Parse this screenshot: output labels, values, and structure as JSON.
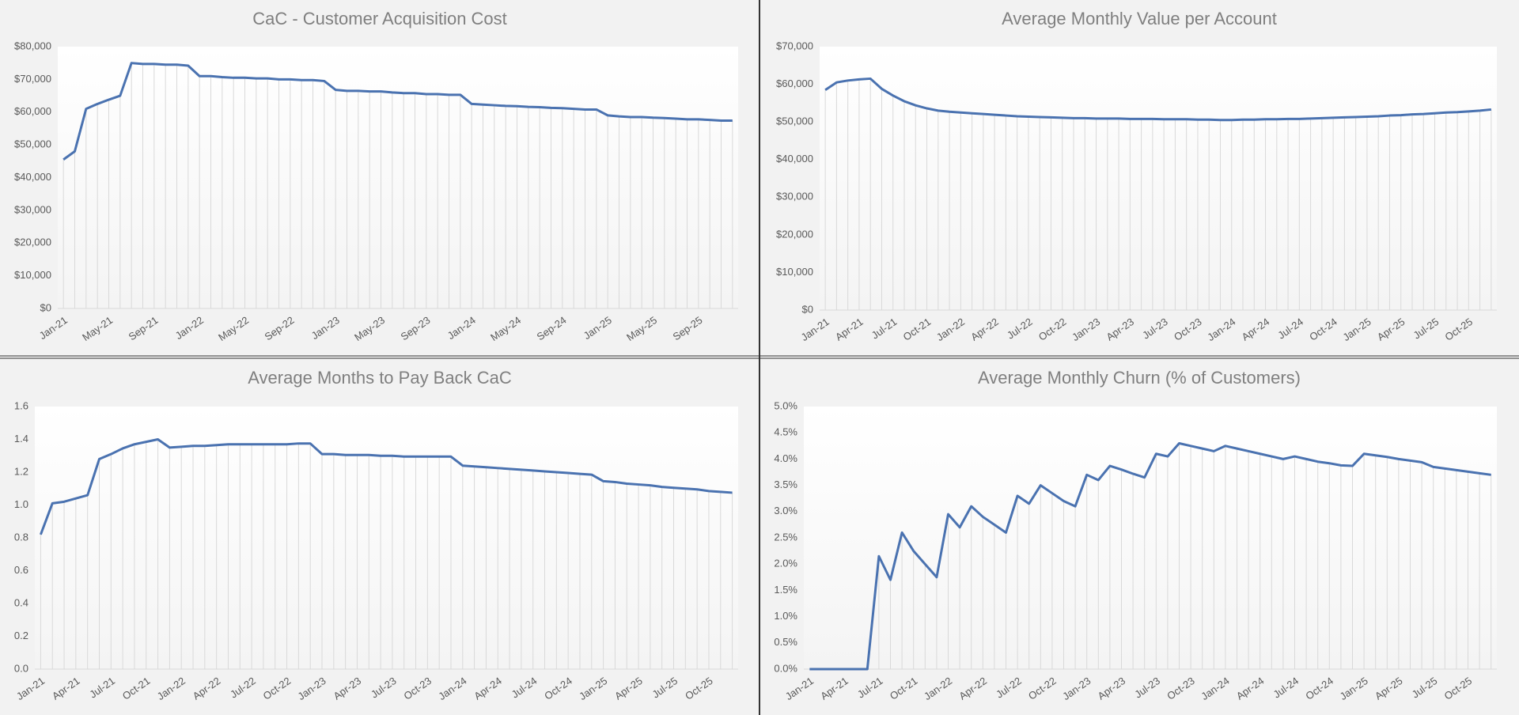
{
  "chart_data": [
    {
      "type": "line",
      "title": "CaC - Customer Acquisition Cost",
      "color": "#4a72b0",
      "categories": [
        "Jan-21",
        null,
        null,
        null,
        "May-21",
        null,
        null,
        null,
        "Sep-21",
        null,
        null,
        null,
        "Jan-22",
        null,
        null,
        null,
        "May-22",
        null,
        null,
        null,
        "Sep-22",
        null,
        null,
        null,
        "Jan-23",
        null,
        null,
        null,
        "May-23",
        null,
        null,
        null,
        "Sep-23",
        null,
        null,
        null,
        "Jan-24",
        null,
        null,
        null,
        "May-24",
        null,
        null,
        null,
        "Sep-24",
        null,
        null,
        null,
        "Jan-25",
        null,
        null,
        null,
        "May-25",
        null,
        null,
        null,
        "Sep-25",
        null,
        null,
        null
      ],
      "values": [
        45500,
        48000,
        61000,
        62500,
        63800,
        65000,
        75000,
        74700,
        74700,
        74500,
        74500,
        74200,
        71000,
        71000,
        70700,
        70500,
        70500,
        70300,
        70300,
        70000,
        70000,
        69800,
        69800,
        69500,
        66800,
        66500,
        66500,
        66300,
        66300,
        66000,
        65800,
        65800,
        65500,
        65500,
        65300,
        65300,
        62500,
        62300,
        62100,
        61900,
        61800,
        61600,
        61500,
        61300,
        61200,
        61000,
        60800,
        60800,
        59000,
        58700,
        58500,
        58500,
        58300,
        58200,
        58000,
        57800,
        57800,
        57600,
        57400,
        57400
      ],
      "ylim": [
        0,
        80000
      ],
      "yticks": [
        {
          "value": 0,
          "label": "$0"
        },
        {
          "value": 10000,
          "label": "$10,000"
        },
        {
          "value": 20000,
          "label": "$20,000"
        },
        {
          "value": 30000,
          "label": "$30,000"
        },
        {
          "value": 40000,
          "label": "$40,000"
        },
        {
          "value": 50000,
          "label": "$50,000"
        },
        {
          "value": 60000,
          "label": "$60,000"
        },
        {
          "value": 70000,
          "label": "$70,000"
        },
        {
          "value": 80000,
          "label": "$80,000"
        }
      ]
    },
    {
      "type": "line",
      "title": "Average Monthly Value per Account",
      "color": "#4a72b0",
      "categories": [
        "Jan-21",
        null,
        null,
        "Apr-21",
        null,
        null,
        "Jul-21",
        null,
        null,
        "Oct-21",
        null,
        null,
        "Jan-22",
        null,
        null,
        "Apr-22",
        null,
        null,
        "Jul-22",
        null,
        null,
        "Oct-22",
        null,
        null,
        "Jan-23",
        null,
        null,
        "Apr-23",
        null,
        null,
        "Jul-23",
        null,
        null,
        "Oct-23",
        null,
        null,
        "Jan-24",
        null,
        null,
        "Apr-24",
        null,
        null,
        "Jul-24",
        null,
        null,
        "Oct-24",
        null,
        null,
        "Jan-25",
        null,
        null,
        "Apr-25",
        null,
        null,
        "Jul-25",
        null,
        null,
        "Oct-25",
        null,
        null
      ],
      "values": [
        58500,
        60500,
        61000,
        61300,
        61500,
        58800,
        57000,
        55500,
        54400,
        53600,
        53000,
        52700,
        52500,
        52300,
        52100,
        51900,
        51700,
        51500,
        51400,
        51300,
        51200,
        51100,
        51000,
        51000,
        50900,
        50900,
        50900,
        50800,
        50800,
        50800,
        50700,
        50700,
        50700,
        50600,
        50600,
        50500,
        50500,
        50600,
        50600,
        50700,
        50700,
        50800,
        50800,
        50900,
        51000,
        51100,
        51200,
        51300,
        51400,
        51500,
        51700,
        51800,
        52000,
        52100,
        52300,
        52500,
        52600,
        52800,
        53000,
        53300
      ],
      "ylim": [
        0,
        70000
      ],
      "yticks": [
        {
          "value": 0,
          "label": "$0"
        },
        {
          "value": 10000,
          "label": "$10,000"
        },
        {
          "value": 20000,
          "label": "$20,000"
        },
        {
          "value": 30000,
          "label": "$30,000"
        },
        {
          "value": 40000,
          "label": "$40,000"
        },
        {
          "value": 50000,
          "label": "$50,000"
        },
        {
          "value": 60000,
          "label": "$60,000"
        },
        {
          "value": 70000,
          "label": "$70,000"
        }
      ]
    },
    {
      "type": "line",
      "title": "Average Months to Pay Back CaC",
      "color": "#4a72b0",
      "categories": [
        "Jan-21",
        null,
        null,
        "Apr-21",
        null,
        null,
        "Jul-21",
        null,
        null,
        "Oct-21",
        null,
        null,
        "Jan-22",
        null,
        null,
        "Apr-22",
        null,
        null,
        "Jul-22",
        null,
        null,
        "Oct-22",
        null,
        null,
        "Jan-23",
        null,
        null,
        "Apr-23",
        null,
        null,
        "Jul-23",
        null,
        null,
        "Oct-23",
        null,
        null,
        "Jan-24",
        null,
        null,
        "Apr-24",
        null,
        null,
        "Jul-24",
        null,
        null,
        "Oct-24",
        null,
        null,
        "Jan-25",
        null,
        null,
        "Apr-25",
        null,
        null,
        "Jul-25",
        null,
        null,
        "Oct-25",
        null,
        null
      ],
      "values": [
        0.82,
        1.01,
        1.02,
        1.04,
        1.06,
        1.28,
        1.31,
        1.345,
        1.37,
        1.385,
        1.4,
        1.35,
        1.355,
        1.36,
        1.36,
        1.365,
        1.37,
        1.37,
        1.37,
        1.37,
        1.37,
        1.37,
        1.375,
        1.375,
        1.31,
        1.31,
        1.305,
        1.305,
        1.305,
        1.3,
        1.3,
        1.295,
        1.295,
        1.295,
        1.295,
        1.295,
        1.24,
        1.235,
        1.23,
        1.225,
        1.22,
        1.215,
        1.21,
        1.205,
        1.2,
        1.195,
        1.19,
        1.185,
        1.145,
        1.14,
        1.13,
        1.125,
        1.12,
        1.11,
        1.105,
        1.1,
        1.095,
        1.085,
        1.08,
        1.075
      ],
      "ylim": [
        0,
        1.6
      ],
      "yticks": [
        {
          "value": 0,
          "label": "0.0"
        },
        0.2,
        0.4,
        0.6,
        0.8,
        {
          "value": 1,
          "label": "1.0"
        },
        1.2,
        1.4,
        1.6
      ]
    },
    {
      "type": "line",
      "title": "Average Monthly Churn (% of Customers)",
      "color": "#4a72b0",
      "categories": [
        "Jan-21",
        null,
        null,
        "Apr-21",
        null,
        null,
        "Jul-21",
        null,
        null,
        "Oct-21",
        null,
        null,
        "Jan-22",
        null,
        null,
        "Apr-22",
        null,
        null,
        "Jul-22",
        null,
        null,
        "Oct-22",
        null,
        null,
        "Jan-23",
        null,
        null,
        "Apr-23",
        null,
        null,
        "Jul-23",
        null,
        null,
        "Oct-23",
        null,
        null,
        "Jan-24",
        null,
        null,
        "Apr-24",
        null,
        null,
        "Jul-24",
        null,
        null,
        "Oct-24",
        null,
        null,
        "Jan-25",
        null,
        null,
        "Apr-25",
        null,
        null,
        "Jul-25",
        null,
        null,
        "Oct-25",
        null,
        null
      ],
      "values": [
        0,
        0,
        0,
        0,
        0,
        0,
        2.15,
        1.7,
        2.6,
        2.25,
        2.0,
        1.75,
        2.95,
        2.7,
        3.1,
        2.9,
        2.75,
        2.6,
        3.3,
        3.15,
        3.5,
        3.35,
        3.2,
        3.1,
        3.7,
        3.6,
        3.87,
        3.8,
        3.72,
        3.65,
        4.1,
        4.05,
        4.3,
        4.25,
        4.2,
        4.15,
        4.25,
        4.2,
        4.15,
        4.1,
        4.05,
        4.0,
        4.05,
        4.0,
        3.95,
        3.92,
        3.88,
        3.87,
        4.1,
        4.07,
        4.04,
        4.0,
        3.97,
        3.94,
        3.85,
        3.82,
        3.79,
        3.76,
        3.73,
        3.7
      ],
      "ylim": [
        0,
        5
      ],
      "yticks": [
        {
          "value": 0,
          "label": "0.0%"
        },
        {
          "value": 0.5,
          "label": "0.5%"
        },
        {
          "value": 1,
          "label": "1.0%"
        },
        {
          "value": 1.5,
          "label": "1.5%"
        },
        {
          "value": 2,
          "label": "2.0%"
        },
        {
          "value": 2.5,
          "label": "2.5%"
        },
        {
          "value": 3,
          "label": "3.0%"
        },
        {
          "value": 3.5,
          "label": "3.5%"
        },
        {
          "value": 4,
          "label": "4.0%"
        },
        {
          "value": 4.5,
          "label": "4.5%"
        },
        {
          "value": 5,
          "label": "5.0%"
        }
      ]
    }
  ]
}
